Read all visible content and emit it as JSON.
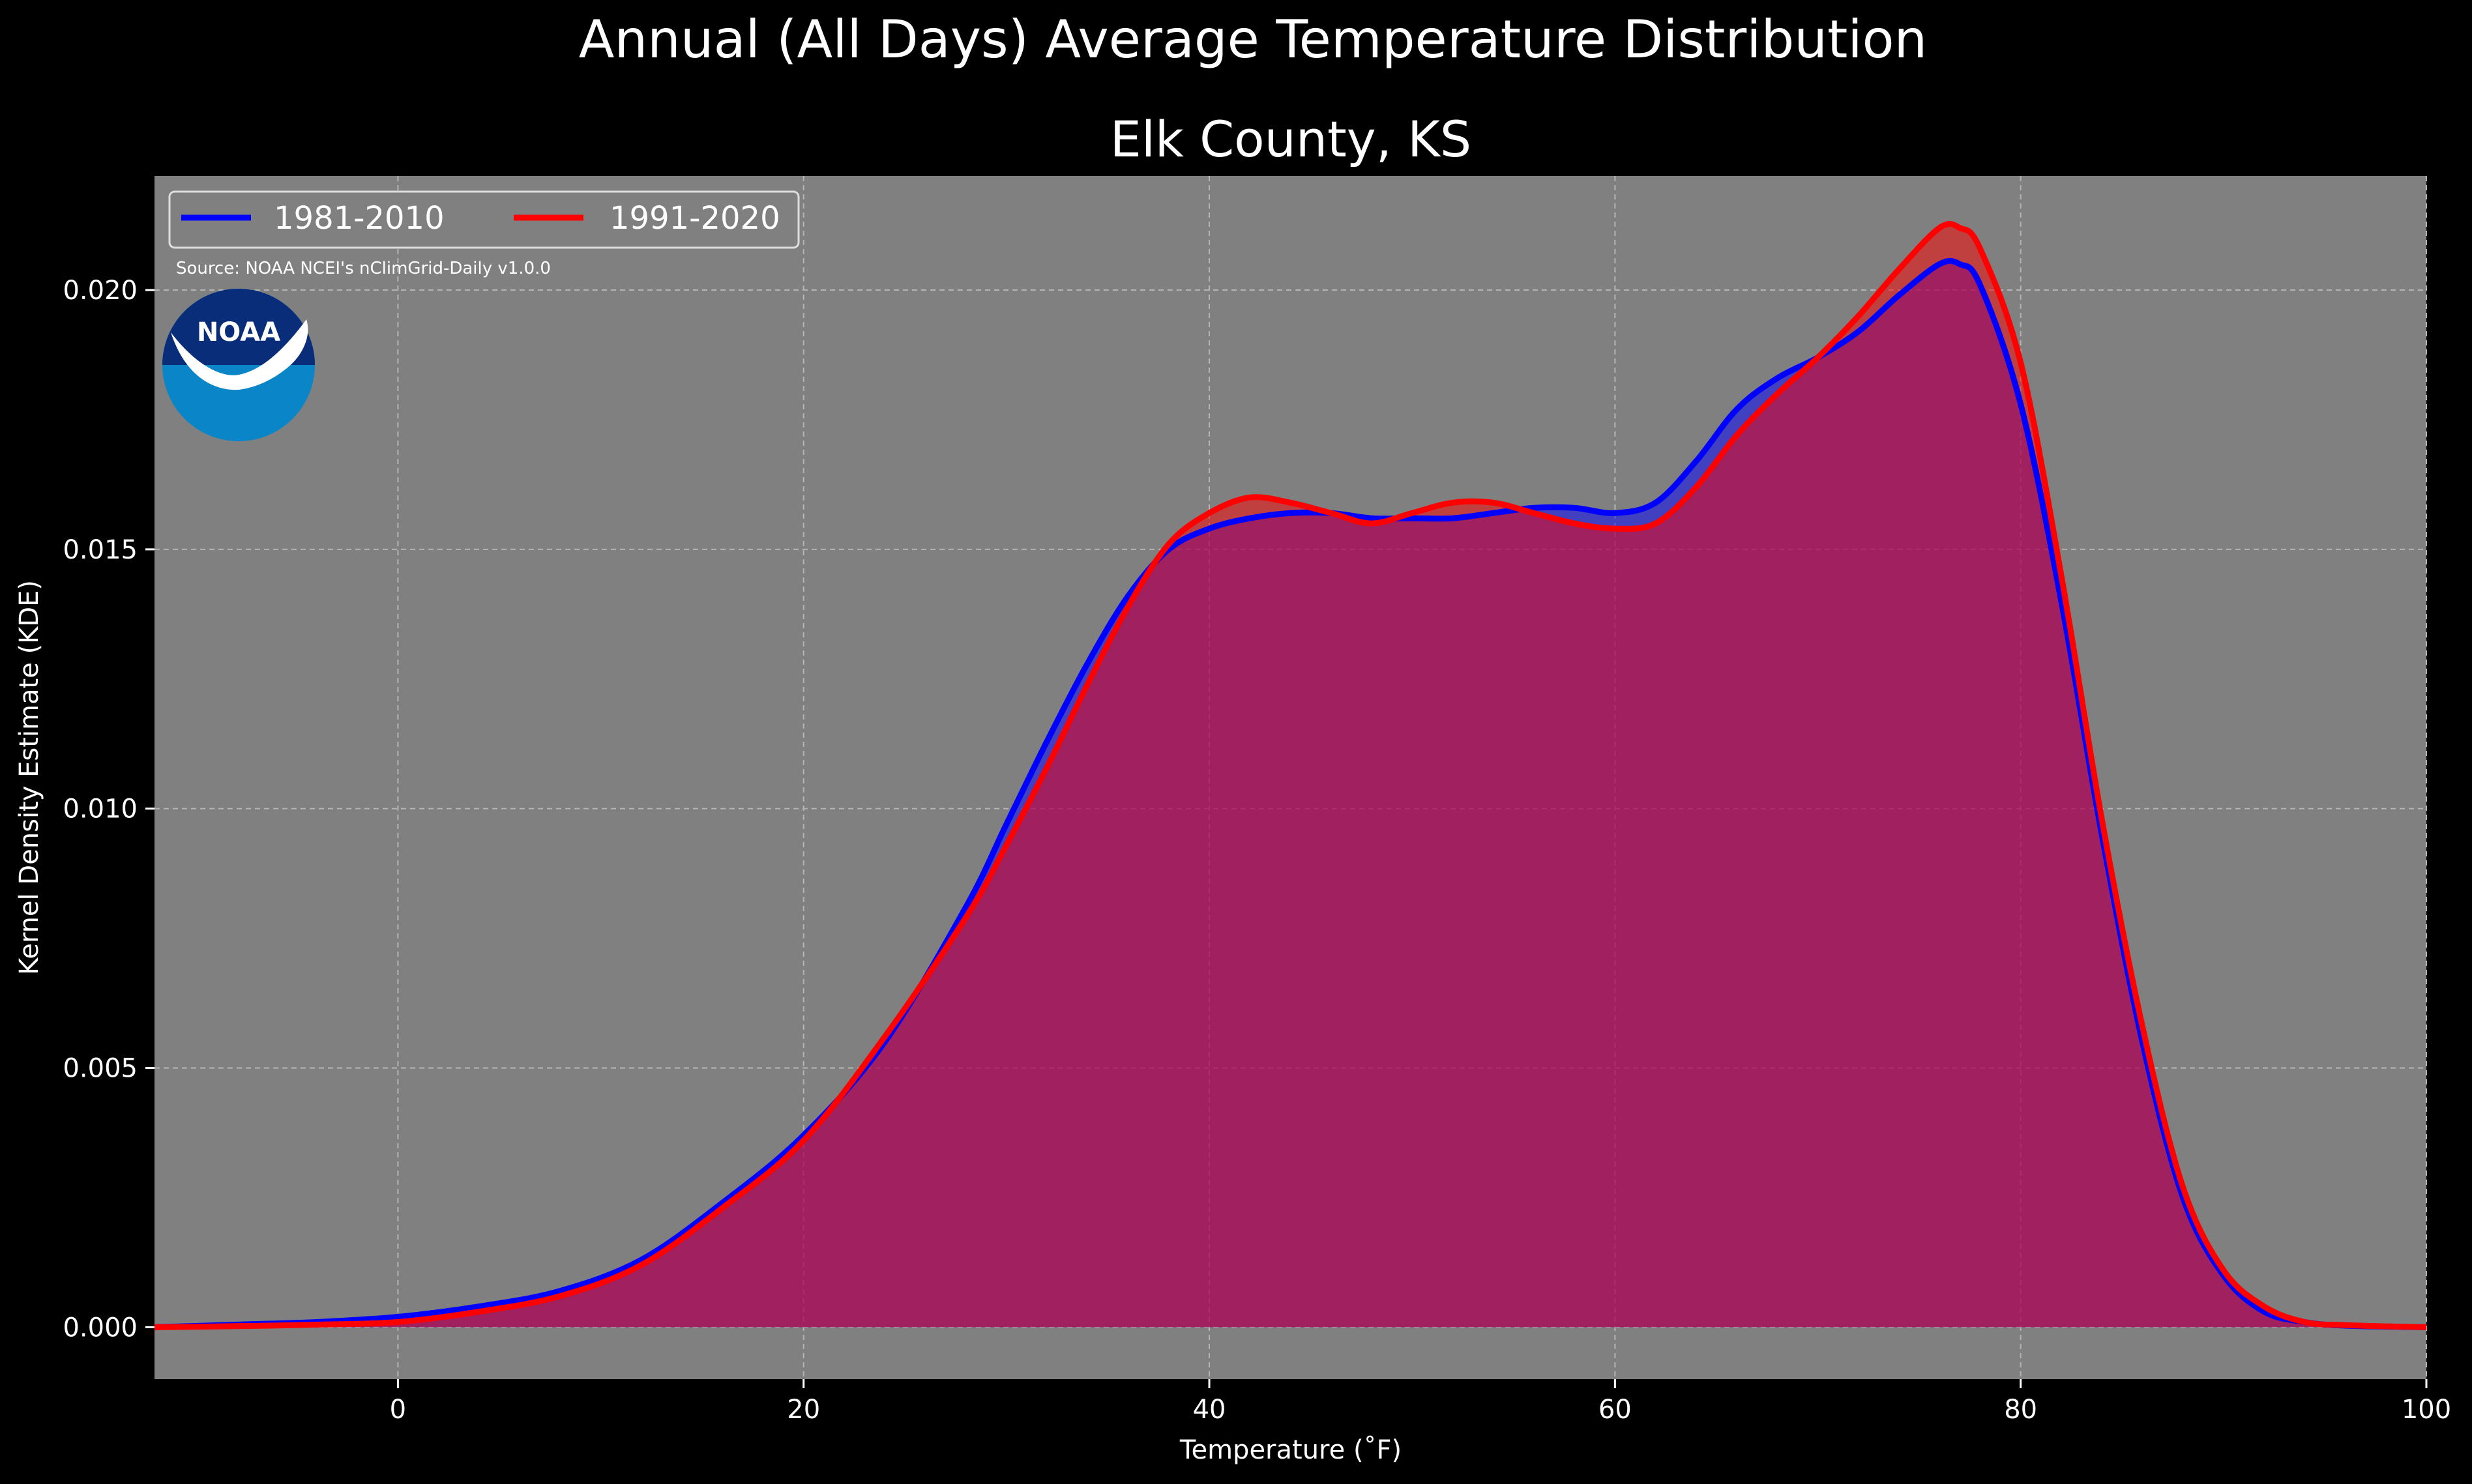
{
  "chart_data": {
    "type": "area",
    "title": "Annual (All Days) Average Temperature Distribution",
    "subtitle": "Elk County, KS",
    "xlabel": "Temperature (˚F)",
    "ylabel": "Kernel Density Estimate (KDE)",
    "xlim": [
      -12,
      100
    ],
    "ylim": [
      -0.001,
      0.0222
    ],
    "xticks": [
      "0",
      "20",
      "40",
      "60",
      "80",
      "100"
    ],
    "yticks": [
      "0.000",
      "0.005",
      "0.010",
      "0.015",
      "0.020"
    ],
    "grid": true,
    "legend_position": "top-left",
    "source": "Source: NOAA NCEI's nClimGrid-Daily v1.0.0",
    "logo_text": "NOAA",
    "series": [
      {
        "name": "1981-2010",
        "color": "#0000ff",
        "x": [
          -12,
          -8,
          -4,
          0,
          4,
          8,
          12,
          16,
          20,
          24,
          28,
          30,
          32,
          34,
          36,
          38,
          40,
          42,
          44,
          46,
          48,
          50,
          52,
          54,
          56,
          58,
          60,
          62,
          64,
          66,
          68,
          70,
          72,
          74,
          76,
          77,
          78,
          80,
          82,
          84,
          86,
          88,
          90,
          92,
          94,
          96,
          100
        ],
        "values": [
          0.0,
          5e-05,
          0.0001,
          0.0002,
          0.0004,
          0.0007,
          0.0013,
          0.0024,
          0.0037,
          0.0055,
          0.0081,
          0.0097,
          0.0113,
          0.0128,
          0.0141,
          0.015,
          0.0154,
          0.0156,
          0.0157,
          0.0157,
          0.0156,
          0.0156,
          0.0156,
          0.0157,
          0.0158,
          0.0158,
          0.0157,
          0.0159,
          0.0167,
          0.0177,
          0.0183,
          0.0187,
          0.0192,
          0.0199,
          0.0205,
          0.0205,
          0.0201,
          0.0178,
          0.014,
          0.0095,
          0.0055,
          0.0025,
          0.001,
          0.0003,
          0.0001,
          3e-05,
          0.0
        ]
      },
      {
        "name": "1991-2020",
        "color": "#ff0000",
        "x": [
          -12,
          -8,
          -4,
          0,
          4,
          8,
          12,
          16,
          20,
          24,
          28,
          30,
          32,
          34,
          36,
          38,
          40,
          42,
          44,
          46,
          48,
          50,
          52,
          54,
          56,
          58,
          60,
          62,
          64,
          66,
          68,
          70,
          72,
          74,
          76,
          77,
          78,
          80,
          82,
          84,
          86,
          88,
          90,
          92,
          94,
          96,
          100
        ],
        "values": [
          0.0,
          2e-05,
          5e-05,
          0.0001,
          0.0003,
          0.0006,
          0.0012,
          0.0023,
          0.0036,
          0.0056,
          0.0079,
          0.0093,
          0.0108,
          0.0124,
          0.0139,
          0.0151,
          0.0157,
          0.016,
          0.0159,
          0.0157,
          0.0155,
          0.0157,
          0.0159,
          0.0159,
          0.0157,
          0.0155,
          0.0154,
          0.0155,
          0.0162,
          0.0172,
          0.018,
          0.0187,
          0.0195,
          0.0204,
          0.0212,
          0.0212,
          0.0208,
          0.0186,
          0.0145,
          0.0098,
          0.0058,
          0.0027,
          0.0011,
          0.0004,
          0.0001,
          4e-05,
          0.0
        ]
      }
    ]
  }
}
